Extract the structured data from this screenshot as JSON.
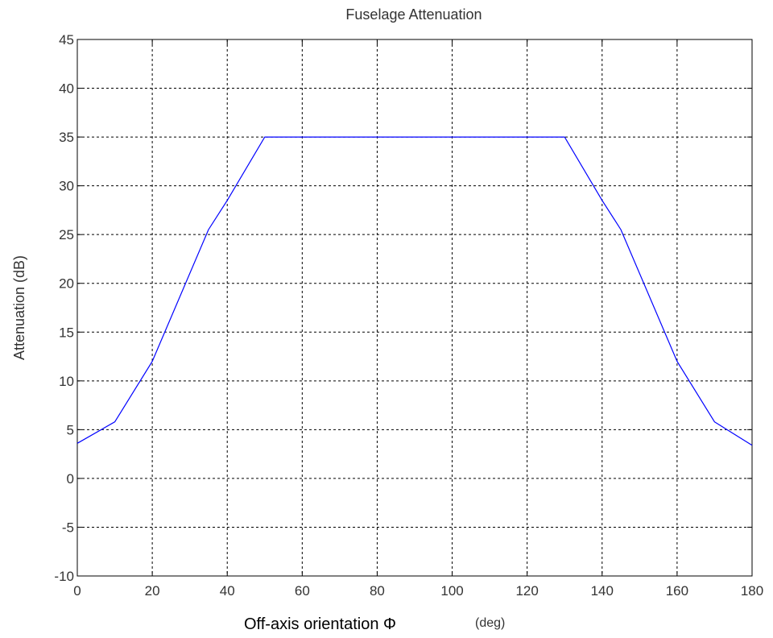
{
  "chart_data": {
    "type": "line",
    "title": "Fuselage Attenuation",
    "xlabel": "Off-axis orientation Φ",
    "xlabel_unit": "(deg)",
    "ylabel": "Attenuation (dB)",
    "xlim": [
      0,
      180
    ],
    "ylim": [
      -10,
      45
    ],
    "xticks": [
      0,
      20,
      40,
      60,
      80,
      100,
      120,
      140,
      160,
      180
    ],
    "yticks": [
      -10,
      -5,
      0,
      5,
      10,
      15,
      20,
      25,
      30,
      35,
      40,
      45
    ],
    "grid": true,
    "line_color": "#0000ff",
    "series": [
      {
        "x": [
          0,
          10,
          20,
          35,
          40,
          50,
          130,
          140,
          145,
          160,
          170,
          175,
          180
        ],
        "y": [
          3.6,
          5.8,
          12,
          25.5,
          28.5,
          35,
          35,
          28.5,
          25.5,
          12,
          5.8,
          4.6,
          3.4
        ]
      }
    ]
  }
}
